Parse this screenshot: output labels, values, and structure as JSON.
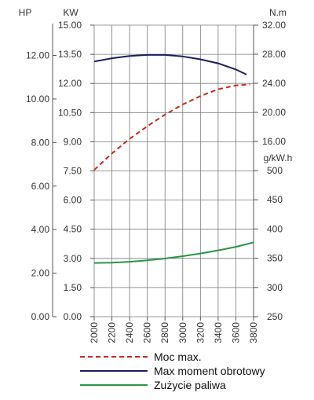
{
  "chart_data": {
    "type": "line",
    "x": [
      2000,
      2200,
      2400,
      2600,
      2800,
      3000,
      3200,
      3400,
      3600,
      3800
    ],
    "x_ticks": [
      "2000",
      "2200",
      "2400",
      "2600",
      "2800",
      "3000",
      "3200",
      "3400",
      "3600",
      "3800"
    ],
    "xlim": [
      2000,
      3800
    ],
    "axes": {
      "hp": {
        "label": "HP",
        "ticks": [
          "0.00",
          "2.00",
          "4.00",
          "6.00",
          "8.00",
          "10.00",
          "12.00"
        ]
      },
      "kw": {
        "label": "KW",
        "ticks": [
          "0.00",
          "1.50",
          "3.00",
          "4.50",
          "6.00",
          "7.50",
          "9.00",
          "10.50",
          "12.00",
          "13.50",
          "15.00"
        ],
        "ylim": [
          0,
          15
        ]
      },
      "torque": {
        "label": "N.m",
        "ticks": [
          "16.00",
          "20.00",
          "24.00",
          "28.00",
          "32.00"
        ],
        "ylim": [
          16,
          32
        ]
      },
      "fuel": {
        "label": "g/kW.h",
        "ticks": [
          "250",
          "300",
          "350",
          "400",
          "450",
          "500"
        ],
        "ylim": [
          250,
          500
        ]
      }
    },
    "series": [
      {
        "name": "Moc max.",
        "axis": "kw",
        "color": "#c8281e",
        "dash": true,
        "x": [
          2000,
          2200,
          2400,
          2600,
          2800,
          3000,
          3200,
          3400,
          3600,
          3760
        ],
        "values": [
          7.55,
          8.4,
          9.15,
          9.8,
          10.4,
          10.92,
          11.35,
          11.7,
          11.9,
          11.95
        ]
      },
      {
        "name": "Max moment obrotowy",
        "axis": "torque",
        "color": "#1c1d5c",
        "dash": false,
        "x": [
          2000,
          2200,
          2400,
          2600,
          2800,
          3000,
          3200,
          3400,
          3600,
          3720
        ],
        "values": [
          27.0,
          27.45,
          27.75,
          27.9,
          27.9,
          27.7,
          27.3,
          26.75,
          25.9,
          25.2
        ]
      },
      {
        "name": "Zużycie paliwa",
        "axis": "fuel",
        "color": "#2a9448",
        "dash": false,
        "x": [
          2000,
          2200,
          2400,
          2600,
          2800,
          3000,
          3200,
          3400,
          3600,
          3800
        ],
        "values": [
          342,
          342.5,
          344,
          346.5,
          349.5,
          353.5,
          358,
          363.5,
          369.5,
          377
        ]
      }
    ],
    "legend_placement": "bottom",
    "grid": true
  }
}
